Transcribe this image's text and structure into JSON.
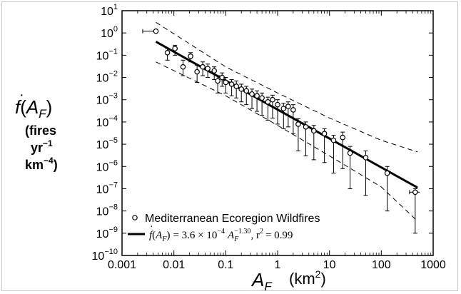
{
  "chart_data": {
    "type": "scatter",
    "title": "",
    "x_scale": "log",
    "y_scale": "log",
    "xlim": [
      0.001,
      1000
    ],
    "ylim": [
      1e-10,
      10
    ],
    "grid": false,
    "legend_position": "bottom-left",
    "xlabel": {
      "symbol": "A",
      "subscript": "F",
      "unit_base": "(km",
      "unit_exp": "2",
      "unit_close": ")"
    },
    "ylabel": {
      "symbol": "f",
      "paren_open": "(",
      "arg": "A",
      "arg_sub": "F",
      "paren_close": ")",
      "line2": "(fires",
      "line3_base": "yr",
      "line3_exp": "−1",
      "line4_base": "km",
      "line4_exp": "−4",
      "line4_close": ")"
    },
    "x_ticks": [
      {
        "value": 0.001,
        "label": "0.001"
      },
      {
        "value": 0.01,
        "label": "0.01"
      },
      {
        "value": 0.1,
        "label": "0.1"
      },
      {
        "value": 1,
        "label": "1"
      },
      {
        "value": 10,
        "label": "10"
      },
      {
        "value": 100,
        "label": "100"
      },
      {
        "value": 1000,
        "label": "1000"
      }
    ],
    "y_ticks": [
      {
        "value": 10.0,
        "base": "10",
        "exp": "1"
      },
      {
        "value": 1.0,
        "base": "10",
        "exp": "0"
      },
      {
        "value": 0.1,
        "base": "10",
        "exp": "−1"
      },
      {
        "value": 0.01,
        "base": "10",
        "exp": "−2"
      },
      {
        "value": 0.001,
        "base": "10",
        "exp": "−3"
      },
      {
        "value": 0.0001,
        "base": "10",
        "exp": "−4"
      },
      {
        "value": 1e-05,
        "base": "10",
        "exp": "−5"
      },
      {
        "value": 1e-06,
        "base": "10",
        "exp": "−6"
      },
      {
        "value": 1e-07,
        "base": "10",
        "exp": "−7"
      },
      {
        "value": 1e-08,
        "base": "10",
        "exp": "−8"
      },
      {
        "value": 1e-09,
        "base": "10",
        "exp": "−9"
      },
      {
        "value": 1e-10,
        "base": "10",
        "exp": "−10"
      }
    ],
    "series": [
      {
        "name": "Mediterranean Ecoregion Wildfires",
        "marker": "open-circle",
        "points": [
          {
            "x": 0.0045,
            "y": 1.2,
            "ylo": 1.2,
            "yhi": 1.2,
            "xlo": 0.0025,
            "xhi": 0.0045
          },
          {
            "x": 0.0075,
            "y": 0.13,
            "ylo": 0.06,
            "yhi": 0.2
          },
          {
            "x": 0.0105,
            "y": 0.2,
            "ylo": 0.1,
            "yhi": 0.28
          },
          {
            "x": 0.015,
            "y": 0.03,
            "ylo": 0.012,
            "yhi": 0.06
          },
          {
            "x": 0.021,
            "y": 0.09,
            "ylo": 0.05,
            "yhi": 0.13
          },
          {
            "x": 0.028,
            "y": 0.018,
            "ylo": 0.006,
            "yhi": 0.035
          },
          {
            "x": 0.036,
            "y": 0.03,
            "ylo": 0.012,
            "yhi": 0.05
          },
          {
            "x": 0.045,
            "y": 0.025,
            "ylo": 0.01,
            "yhi": 0.04
          },
          {
            "x": 0.06,
            "y": 0.02,
            "ylo": 0.008,
            "yhi": 0.03
          },
          {
            "x": 0.07,
            "y": 0.007,
            "ylo": 0.002,
            "yhi": 0.012
          },
          {
            "x": 0.085,
            "y": 0.01,
            "ylo": 0.004,
            "yhi": 0.016
          },
          {
            "x": 0.1,
            "y": 0.006,
            "ylo": 0.002,
            "yhi": 0.01
          },
          {
            "x": 0.13,
            "y": 0.005,
            "ylo": 0.0015,
            "yhi": 0.008
          },
          {
            "x": 0.16,
            "y": 0.004,
            "ylo": 0.0012,
            "yhi": 0.007
          },
          {
            "x": 0.2,
            "y": 0.003,
            "ylo": 0.0008,
            "yhi": 0.005
          },
          {
            "x": 0.25,
            "y": 0.0025,
            "ylo": 0.0006,
            "yhi": 0.004
          },
          {
            "x": 0.32,
            "y": 0.0018,
            "ylo": 0.0004,
            "yhi": 0.003
          },
          {
            "x": 0.4,
            "y": 0.0015,
            "ylo": 0.0003,
            "yhi": 0.0025
          },
          {
            "x": 0.5,
            "y": 0.0012,
            "ylo": 0.0002,
            "yhi": 0.002
          },
          {
            "x": 0.65,
            "y": 0.0008,
            "ylo": 0.00012,
            "yhi": 0.0013
          },
          {
            "x": 0.8,
            "y": 0.001,
            "ylo": 0.00015,
            "yhi": 0.0016
          },
          {
            "x": 1.0,
            "y": 0.0006,
            "ylo": 8e-05,
            "yhi": 0.001
          },
          {
            "x": 1.3,
            "y": 0.0004,
            "ylo": 5e-05,
            "yhi": 0.0007
          },
          {
            "x": 1.6,
            "y": 0.0005,
            "ylo": 6e-05,
            "yhi": 0.0008
          },
          {
            "x": 2.0,
            "y": 0.00035,
            "ylo": 3e-05,
            "yhi": 0.0006
          },
          {
            "x": 2.5,
            "y": 8e-05,
            "ylo": 5e-06,
            "yhi": 0.00014
          },
          {
            "x": 3.5,
            "y": 6e-05,
            "ylo": 3e-06,
            "yhi": 0.0001
          },
          {
            "x": 5.0,
            "y": 4e-05,
            "ylo": 2e-06,
            "yhi": 7e-05
          },
          {
            "x": 8.0,
            "y": 3e-05,
            "ylo": 1.5e-06,
            "yhi": 5e-05
          },
          {
            "x": 12.0,
            "y": 1.5e-05,
            "ylo": 5e-07,
            "yhi": 2.5e-05
          },
          {
            "x": 18.0,
            "y": 2e-05,
            "ylo": 8e-07,
            "yhi": 3.5e-05
          },
          {
            "x": 25.0,
            "y": 4e-06,
            "ylo": 1e-07,
            "yhi": 8e-06
          },
          {
            "x": 50.0,
            "y": 2.5e-06,
            "ylo": 5e-08,
            "yhi": 5e-06
          },
          {
            "x": 130.0,
            "y": 5e-07,
            "ylo": 1e-08,
            "yhi": 1e-06
          },
          {
            "x": 450.0,
            "y": 7e-08,
            "ylo": 1e-09,
            "yhi": 1e-07,
            "xlo": 350.0,
            "xhi": 550.0
          }
        ]
      }
    ],
    "fit": {
      "coefficient": 0.00036,
      "exponent": -1.3,
      "x_range": [
        0.0045,
        500
      ],
      "upper_band": {
        "x": [
          0.0045,
          0.1,
          1,
          10,
          100,
          500
        ],
        "y": [
          3.0,
          0.03,
          0.002,
          0.00015,
          1.5e-05,
          4.5e-06
        ]
      },
      "lower_band": {
        "x": [
          0.0045,
          0.1,
          1,
          10,
          100,
          500
        ],
        "y": [
          0.05,
          0.0015,
          7e-05,
          3e-06,
          1.2e-07,
          3.5e-09
        ]
      },
      "legend_parts": {
        "f": "f",
        "lp": "(",
        "A": "A",
        "Asub": "F",
        "rp": ")",
        "eq": "= 3.6 × 10",
        "coef_exp": "−4",
        "A2": "A",
        "A2sub": "F",
        "A2exp": "−1.30",
        "r2": ",  r",
        "r2exp": "2",
        "r2val": "= 0.99"
      }
    }
  }
}
